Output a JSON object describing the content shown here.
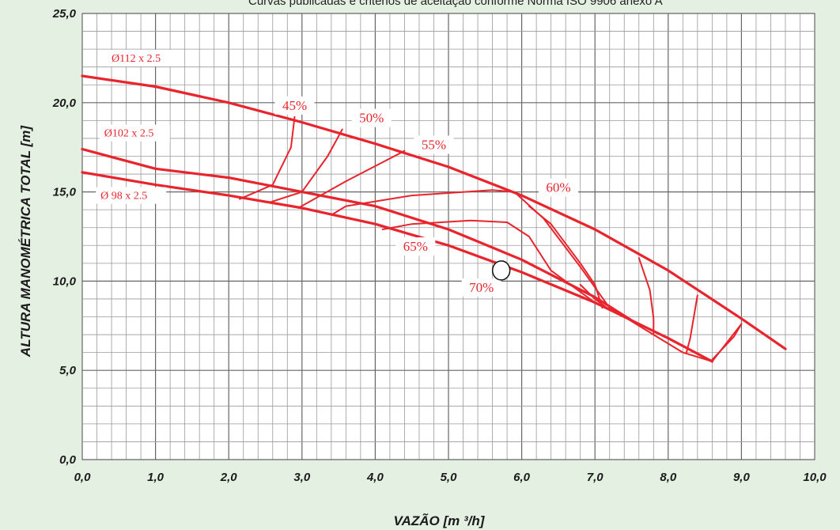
{
  "chart_data": {
    "type": "line",
    "subtitle": "Curvas publicadas e critérios de aceitação conforme Norma ISO 9906 anexo A",
    "xlabel": "VAZÃO [m ³/h]",
    "ylabel": "ALTURA MANOMÉTRICA TOTAL [m]",
    "xlim": [
      0,
      10
    ],
    "ylim": [
      0,
      25
    ],
    "x_ticks": [
      "0,0",
      "1,0",
      "2,0",
      "3,0",
      "4,0",
      "5,0",
      "6,0",
      "7,0",
      "8,0",
      "9,0",
      "10,0"
    ],
    "y_ticks": [
      "0,0",
      "5,0",
      "10,0",
      "15,0",
      "20,0",
      "25,0"
    ],
    "grid": true,
    "line_color": "#e8242d",
    "series": [
      {
        "name": "Ø112 x 2.5",
        "x": [
          0,
          1,
          2,
          3,
          4,
          5,
          6,
          7,
          8,
          9,
          9.6
        ],
        "y": [
          21.5,
          20.9,
          20.0,
          18.9,
          17.7,
          16.4,
          14.8,
          12.9,
          10.6,
          7.9,
          6.2
        ]
      },
      {
        "name": "Ø102 x 2.5",
        "x": [
          0,
          1,
          2,
          3,
          4,
          5,
          6,
          7,
          7.5
        ],
        "y": [
          17.4,
          16.3,
          15.8,
          15.0,
          14.2,
          12.9,
          11.2,
          9.1,
          7.8
        ]
      },
      {
        "name": "Ø 98 x 2.5",
        "x": [
          0,
          1,
          2,
          3,
          4,
          5,
          6,
          7,
          8,
          8.6
        ],
        "y": [
          16.1,
          15.4,
          14.8,
          14.1,
          13.2,
          12.0,
          10.5,
          8.8,
          6.8,
          5.5
        ]
      }
    ],
    "efficiency_curves": [
      {
        "label": "45%",
        "x": [
          2.15,
          2.6,
          2.85,
          2.9
        ],
        "y": [
          14.6,
          15.4,
          17.5,
          19.2
        ]
      },
      {
        "label": "50%",
        "x": [
          2.55,
          3.0,
          3.35,
          3.55
        ],
        "y": [
          14.4,
          15.0,
          17.0,
          18.5
        ]
      },
      {
        "label": "55%",
        "x": [
          2.95,
          3.6,
          4.4
        ],
        "y": [
          14.1,
          15.6,
          17.3
        ]
      },
      {
        "label": "60%",
        "x": [
          3.4,
          3.6,
          4.5,
          5.6,
          5.9,
          6.3,
          6.8,
          7.2,
          7.8,
          8.2,
          8.6,
          9.0
        ],
        "y": [
          13.7,
          14.2,
          14.8,
          15.1,
          15.0,
          13.5,
          10.8,
          8.5,
          7.0,
          6.0,
          5.5,
          7.6
        ]
      },
      {
        "label": "65%",
        "x": [
          4.1,
          4.5,
          5.3,
          5.8,
          6.1,
          6.4,
          7.0
        ],
        "y": [
          12.9,
          13.2,
          13.4,
          13.3,
          12.5,
          10.6,
          8.8
        ]
      }
    ],
    "extra_traces": [
      {
        "x": [
          6.1,
          6.4,
          6.8,
          7.0,
          7.1
        ],
        "y": [
          14.2,
          13.2,
          11.0,
          9.8,
          8.5
        ]
      },
      {
        "x": [
          6.8,
          7.0,
          7.2,
          7.3
        ],
        "y": [
          9.8,
          9.0,
          8.4,
          8.3
        ]
      },
      {
        "x": [
          7.6,
          7.75,
          7.8,
          7.8
        ],
        "y": [
          11.3,
          9.5,
          7.9,
          7.0
        ]
      },
      {
        "x": [
          8.4,
          8.3,
          8.25
        ],
        "y": [
          9.2,
          6.8,
          6.0
        ]
      },
      {
        "x": [
          8.6,
          8.9,
          9.0
        ],
        "y": [
          5.6,
          6.9,
          7.6
        ]
      }
    ],
    "series_labels": [
      {
        "text": "Ø112 x 2.5",
        "x": 0.4,
        "y": 22.3
      },
      {
        "text": "Ø102 x 2.5",
        "x": 0.3,
        "y": 18.1
      },
      {
        "text": "Ø 98 x 2.5",
        "x": 0.25,
        "y": 14.6
      }
    ],
    "efficiency_labels": [
      {
        "text": "45%",
        "x": 2.9,
        "y": 19.6
      },
      {
        "text": "50%",
        "x": 3.95,
        "y": 18.9
      },
      {
        "text": "55%",
        "x": 4.8,
        "y": 17.4
      },
      {
        "text": "60%",
        "x": 6.5,
        "y": 15.0
      },
      {
        "text": "65%",
        "x": 4.55,
        "y": 11.7
      },
      {
        "text": "70%",
        "x": 5.45,
        "y": 9.4
      }
    ],
    "operating_point": {
      "x": 5.72,
      "y": 10.6
    }
  }
}
